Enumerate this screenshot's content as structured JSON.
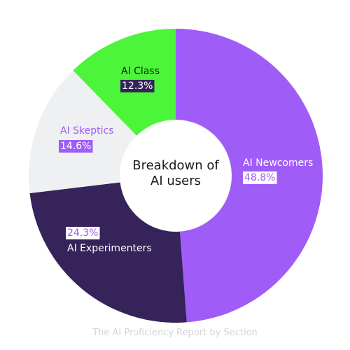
{
  "chart_data": {
    "type": "donut",
    "title": "Breakdown of AI users",
    "subtitle": "The AI Proficiency Report by Section",
    "categories": [
      "AI Newcomers",
      "AI Experimenters",
      "AI Skeptics",
      "AI Class"
    ],
    "values": [
      48.8,
      24.3,
      14.6,
      12.3
    ],
    "value_labels": [
      "48.8%",
      "24.3%",
      "14.6%",
      "12.3%"
    ],
    "colors": [
      "#a05cf7",
      "#35235a",
      "#eef0f2",
      "#4cf53a"
    ]
  }
}
